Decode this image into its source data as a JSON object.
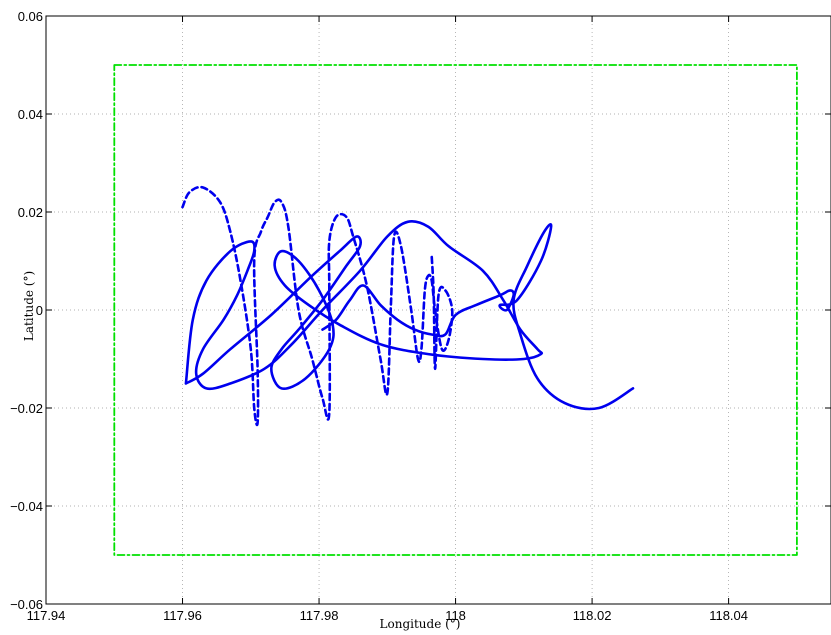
{
  "chart_data": {
    "type": "line",
    "xlabel": "Longitude (°)",
    "ylabel": "Latitude (°)",
    "xlim": [
      117.94,
      118.055
    ],
    "ylim": [
      -0.06,
      0.06
    ],
    "xticks": [
      117.94,
      117.96,
      117.98,
      118,
      118.02,
      118.04
    ],
    "xtick_labels": [
      "117.94",
      "117.96",
      "117.98",
      "118",
      "118.02",
      "118.04"
    ],
    "yticks": [
      -0.06,
      -0.04,
      -0.02,
      0,
      0.02,
      0.04,
      0.06
    ],
    "ytick_labels": [
      "−0.06",
      "−0.04",
      "−0.02",
      "0",
      "0.02",
      "0.04",
      "0.06"
    ],
    "grid": true,
    "series": [
      {
        "style": "dash-dot",
        "color": "#00e000",
        "x": [
          117.95,
          118.05,
          118.05,
          117.95,
          117.95
        ],
        "y": [
          0.05,
          0.05,
          -0.05,
          -0.05,
          0.05
        ]
      },
      {
        "style": "dashed",
        "color": "#0000ee",
        "x": [
          117.96,
          117.961,
          117.963,
          117.9655,
          117.967,
          117.9685,
          117.97,
          117.9705,
          117.971,
          117.971,
          117.9705,
          117.9715,
          117.9725,
          117.9735,
          117.9745,
          117.9755,
          117.977,
          117.979,
          117.9805,
          117.9815,
          117.9815,
          117.9815,
          117.9825,
          117.984,
          117.985,
          117.987,
          117.989,
          117.99,
          117.9905,
          117.991,
          117.992,
          117.9935,
          117.9945,
          117.995,
          117.9955,
          117.996,
          117.9965,
          117.997,
          117.998,
          117.999,
          117.9995,
          117.9985,
          117.9975,
          117.997,
          117.9968,
          117.9965
        ],
        "y": [
          0.021,
          0.024,
          0.025,
          0.022,
          0.016,
          0.006,
          -0.008,
          -0.02,
          -0.023,
          -0.012,
          0.01,
          0.016,
          0.019,
          0.022,
          0.022,
          0.017,
          0.0,
          -0.01,
          -0.018,
          -0.021,
          0.004,
          0.014,
          0.019,
          0.019,
          0.015,
          0.005,
          -0.01,
          -0.017,
          0.0,
          0.015,
          0.013,
          0.0,
          -0.01,
          -0.008,
          0.004,
          0.007,
          0.006,
          0.0,
          -0.008,
          -0.006,
          0.0,
          0.004,
          0.003,
          -0.012,
          0.003,
          0.011
        ]
      },
      {
        "style": "solid",
        "color": "#0000ee",
        "x": [
          117.9605,
          117.963,
          117.967,
          117.973,
          117.979,
          117.983,
          117.9855,
          117.986,
          117.984,
          117.9805,
          117.977,
          117.9745,
          117.973,
          117.9745,
          117.978,
          117.9815,
          117.982,
          117.98,
          117.977,
          117.9745,
          117.9735,
          117.975,
          117.9785,
          117.983,
          117.989,
          117.996,
          118.004,
          118.01,
          118.0125,
          118.012,
          118.0095,
          118.007,
          118.004,
          117.999,
          117.996,
          117.993,
          117.99,
          117.986,
          117.9805,
          117.976,
          117.972,
          117.967,
          117.9635,
          117.962,
          117.963,
          117.966,
          117.968,
          117.9695,
          117.9705,
          117.97,
          117.967,
          117.9635,
          117.9615,
          117.9605
        ],
        "y": [
          -0.015,
          -0.013,
          -0.008,
          -0.001,
          0.007,
          0.012,
          0.015,
          0.013,
          0.009,
          0.002,
          -0.004,
          -0.008,
          -0.012,
          -0.016,
          -0.014,
          -0.008,
          -0.003,
          0.004,
          0.01,
          0.012,
          0.009,
          0.005,
          0.001,
          -0.003,
          -0.007,
          -0.009,
          -0.01,
          -0.01,
          -0.009,
          -0.008,
          -0.004,
          0.002,
          0.008,
          0.013,
          0.017,
          0.018,
          0.015,
          0.008,
          0.0,
          -0.007,
          -0.012,
          -0.015,
          -0.016,
          -0.013,
          -0.008,
          -0.002,
          0.003,
          0.008,
          0.012,
          0.014,
          0.012,
          0.006,
          -0.002,
          -0.015
        ]
      },
      {
        "style": "solid",
        "color": "#0000ee",
        "x": [
          117.9805,
          117.9825,
          117.9845,
          117.9865,
          117.989,
          117.9915,
          117.994,
          117.9965,
          117.9985,
          118.0,
          118.003,
          118.0065,
          118.008,
          118.0085,
          118.0075,
          118.0065,
          118.009,
          118.0125,
          118.014,
          118.013,
          118.0105,
          118.0085,
          118.0095,
          118.012,
          118.016,
          118.021,
          118.026
        ],
        "y": [
          -0.004,
          -0.002,
          0.002,
          0.005,
          0.001,
          -0.002,
          -0.004,
          -0.005,
          -0.005,
          -0.001,
          0.001,
          0.003,
          0.004,
          0.003,
          0.0,
          0.001,
          0.002,
          0.01,
          0.017,
          0.016,
          0.009,
          0.002,
          -0.005,
          -0.014,
          -0.019,
          -0.02,
          -0.016
        ]
      }
    ]
  }
}
